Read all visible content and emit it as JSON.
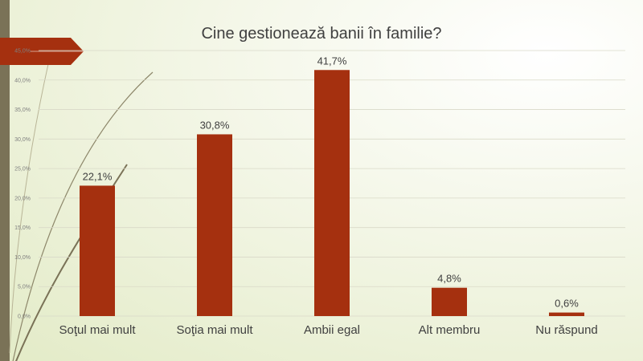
{
  "chart_data": {
    "type": "bar",
    "title": "Cine gestionează banii în familie?",
    "categories": [
      "Soţul mai mult",
      "Soţia mai mult",
      "Ambii  egal",
      "Alt membru",
      "Nu răspund"
    ],
    "values": [
      22.1,
      30.8,
      41.7,
      4.8,
      0.6
    ],
    "value_labels": [
      "22,1%",
      "30,8%",
      "41,7%",
      "4,8%",
      "0,6%"
    ],
    "y_ticks": [
      "0,0%",
      "5,0%",
      "10,0%",
      "15,0%",
      "20,0%",
      "25,0%",
      "30,0%",
      "35,0%",
      "40,0%",
      "45,0%"
    ],
    "ylim": [
      0,
      45
    ],
    "grid": true,
    "xlabel": "",
    "ylabel": "",
    "bar_color": "#a5300f",
    "accent_color": "#a5300f"
  }
}
